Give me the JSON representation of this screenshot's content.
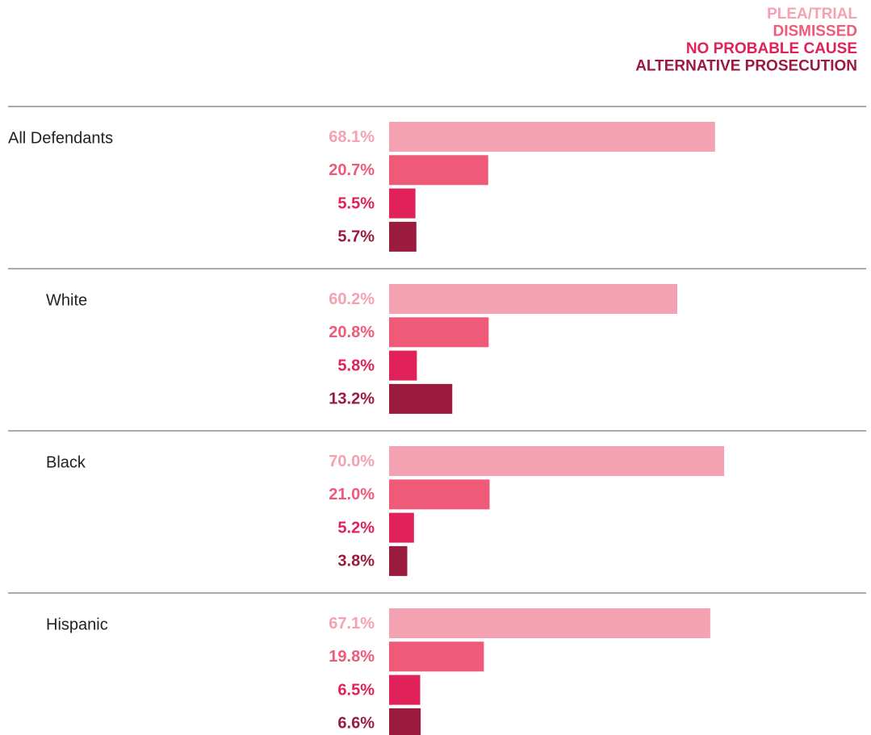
{
  "chart_data": {
    "type": "bar",
    "orientation": "horizontal",
    "categories": [
      "All Defendants",
      "White",
      "Black",
      "Hispanic"
    ],
    "series": [
      {
        "name": "PLEA/TRIAL",
        "color": "#f4a1b1",
        "values": [
          68.1,
          60.2,
          70.0,
          67.1
        ],
        "value_labels": [
          "68.1%",
          "60.2%",
          "70.0%",
          "67.1%"
        ]
      },
      {
        "name": "DISMISSED",
        "color": "#ef5a78",
        "values": [
          20.7,
          20.8,
          21.0,
          19.8
        ],
        "value_labels": [
          "20.7%",
          "20.8%",
          "21.0%",
          "19.8%"
        ]
      },
      {
        "name": "NO PROBABLE CAUSE",
        "color": "#e0215a",
        "values": [
          5.5,
          5.8,
          5.2,
          6.5
        ],
        "value_labels": [
          "5.5%",
          "5.8%",
          "5.2%",
          "6.5%"
        ]
      },
      {
        "name": "ALTERNATIVE PROSECUTION",
        "color": "#9b1b3f",
        "values": [
          5.7,
          13.2,
          3.8,
          6.6
        ],
        "value_labels": [
          "5.7%",
          "13.2%",
          "3.8%",
          "6.6%"
        ]
      }
    ],
    "legend": "top-right"
  }
}
